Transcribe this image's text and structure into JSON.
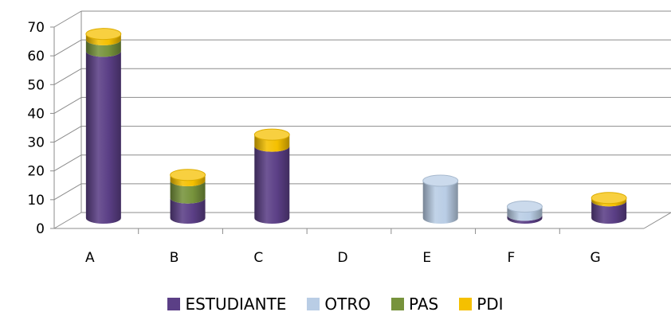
{
  "chart_data": {
    "type": "bar",
    "stacked": true,
    "style": "3d-cylinder",
    "title": "",
    "xlabel": "",
    "ylabel": "",
    "ylim": [
      0,
      70
    ],
    "yticks": [
      0,
      10,
      20,
      30,
      40,
      50,
      60,
      70
    ],
    "grid": true,
    "legend_position": "bottom",
    "categories": [
      "A",
      "B",
      "C",
      "D",
      "E",
      "F",
      "G"
    ],
    "series": [
      {
        "name": "ESTUDIANTE",
        "color": "#5b3f86",
        "values": [
          58,
          7,
          25,
          0,
          0,
          1,
          6
        ]
      },
      {
        "name": "OTRO",
        "color": "#b9cde5",
        "values": [
          0,
          0,
          0,
          0,
          13,
          3,
          0
        ]
      },
      {
        "name": "PAS",
        "color": "#77933c",
        "values": [
          4,
          6,
          0,
          0,
          0,
          0,
          0
        ]
      },
      {
        "name": "PDI",
        "color": "#f5c000",
        "values": [
          2,
          2,
          4,
          0,
          0,
          0,
          1
        ]
      }
    ]
  }
}
